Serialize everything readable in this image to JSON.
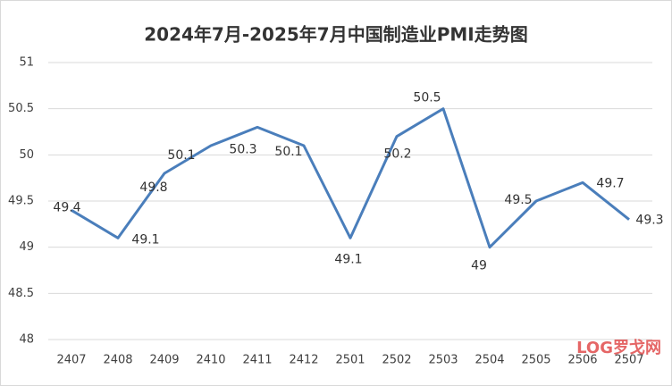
{
  "chart_data": {
    "type": "line",
    "title": "2024年7月-2025年7月中国制造业PMI走势图",
    "categories": [
      "2407",
      "2408",
      "2409",
      "2410",
      "2411",
      "2412",
      "2501",
      "2502",
      "2503",
      "2504",
      "2505",
      "2506",
      "2507"
    ],
    "values": [
      49.4,
      49.1,
      49.8,
      50.1,
      50.3,
      50.1,
      49.1,
      50.2,
      50.5,
      49,
      49.5,
      49.7,
      49.3
    ],
    "color": "#4a7ebb",
    "ylim": [
      48,
      51
    ],
    "yticks": [
      48,
      48.5,
      49,
      49.5,
      50,
      50.5,
      51
    ],
    "grid": true,
    "watermark": "LOG罗戈网"
  }
}
